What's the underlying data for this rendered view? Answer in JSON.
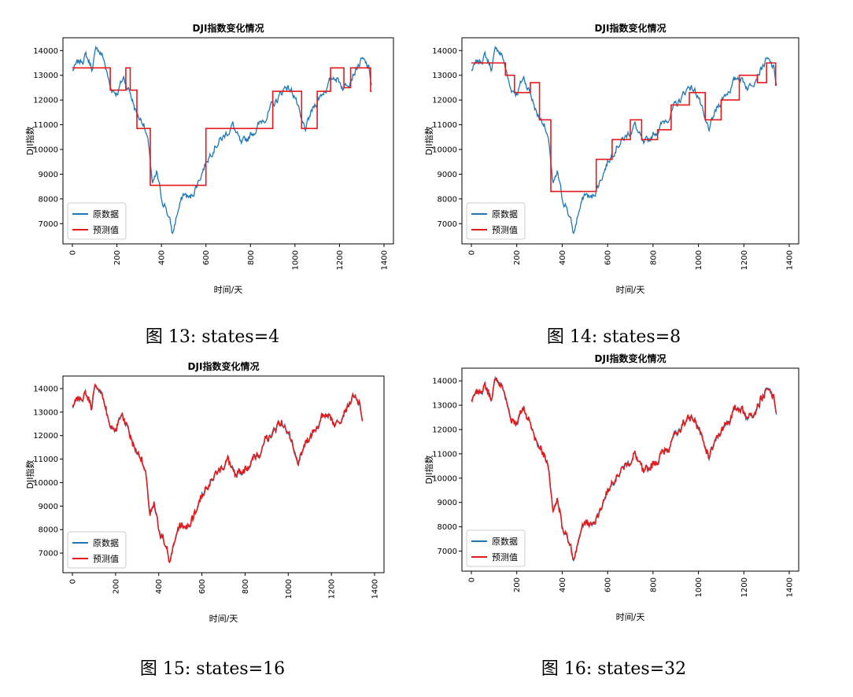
{
  "figures": [
    {
      "caption_prefix": "图",
      "caption_num": "13:",
      "caption_text": "states=4",
      "chart_data": {
        "type": "line",
        "title": "DJI指数变化情况",
        "xlabel": "时间/天",
        "ylabel": "DJI指数",
        "xlim": [
          0,
          1400
        ],
        "ylim": [
          6500,
          14200
        ],
        "xticks": [
          0,
          200,
          400,
          600,
          800,
          1000,
          1200,
          1400
        ],
        "yticks": [
          7000,
          8000,
          9000,
          10000,
          11000,
          12000,
          13000,
          14000
        ],
        "legend_position": "lower-left",
        "series": [
          {
            "name": "原数据",
            "color": "#1f77b4",
            "kind": "raw"
          },
          {
            "name": "预测值",
            "color": "#e31a1c",
            "kind": "steps",
            "steps": [
              [
                0,
                13300
              ],
              [
                170,
                12400
              ],
              [
                240,
                13300
              ],
              [
                260,
                12400
              ],
              [
                290,
                10850
              ],
              [
                350,
                8550
              ],
              [
                600,
                10850
              ],
              [
                900,
                12350
              ],
              [
                1030,
                10850
              ],
              [
                1100,
                12350
              ],
              [
                1160,
                13300
              ],
              [
                1220,
                12500
              ],
              [
                1250,
                13300
              ],
              [
                1340,
                12350
              ]
            ]
          }
        ]
      }
    },
    {
      "caption_prefix": "图",
      "caption_num": "14:",
      "caption_text": "states=8",
      "chart_data": {
        "type": "line",
        "title": "DJI指数变化情况",
        "xlabel": "时间/天",
        "ylabel": "DJI指数",
        "xlim": [
          0,
          1400
        ],
        "ylim": [
          6500,
          14200
        ],
        "xticks": [
          0,
          200,
          400,
          600,
          800,
          1000,
          1200,
          1400
        ],
        "yticks": [
          7000,
          8000,
          9000,
          10000,
          11000,
          12000,
          13000,
          14000
        ],
        "legend_position": "lower-left",
        "series": [
          {
            "name": "原数据",
            "color": "#1f77b4",
            "kind": "raw"
          },
          {
            "name": "预测值",
            "color": "#e31a1c",
            "kind": "steps",
            "steps": [
              [
                0,
                13500
              ],
              [
                150,
                13000
              ],
              [
                190,
                12300
              ],
              [
                260,
                12700
              ],
              [
                300,
                11200
              ],
              [
                350,
                8300
              ],
              [
                550,
                9600
              ],
              [
                620,
                10400
              ],
              [
                700,
                11200
              ],
              [
                750,
                10400
              ],
              [
                820,
                10800
              ],
              [
                880,
                11800
              ],
              [
                960,
                12300
              ],
              [
                1030,
                11200
              ],
              [
                1100,
                12000
              ],
              [
                1180,
                13000
              ],
              [
                1260,
                12700
              ],
              [
                1300,
                13500
              ],
              [
                1340,
                12600
              ]
            ]
          }
        ]
      }
    },
    {
      "caption_prefix": "图",
      "caption_num": "15:",
      "caption_text": "states=16",
      "chart_data": {
        "type": "line",
        "title": "DJI指数变化情况",
        "xlabel": "时间/天",
        "ylabel": "DJI指数",
        "xlim": [
          0,
          1400
        ],
        "ylim": [
          6500,
          14200
        ],
        "xticks": [
          0,
          200,
          400,
          600,
          800,
          1000,
          1200,
          1400
        ],
        "yticks": [
          7000,
          8000,
          9000,
          10000,
          11000,
          12000,
          13000,
          14000
        ],
        "legend_position": "lower-left",
        "series": [
          {
            "name": "原数据",
            "color": "#1f77b4",
            "kind": "raw"
          },
          {
            "name": "预测值",
            "color": "#e31a1c",
            "kind": "tracking"
          }
        ]
      }
    },
    {
      "caption_prefix": "图",
      "caption_num": "16:",
      "caption_text": "states=32",
      "chart_data": {
        "type": "line",
        "title": "DJI指数变化情况",
        "xlabel": "时间/天",
        "ylabel": "DJI指数",
        "xlim": [
          0,
          1400
        ],
        "ylim": [
          6500,
          14200
        ],
        "xticks": [
          0,
          200,
          400,
          600,
          800,
          1000,
          1200,
          1400
        ],
        "yticks": [
          7000,
          8000,
          9000,
          10000,
          11000,
          12000,
          13000,
          14000
        ],
        "legend_position": "lower-left",
        "series": [
          {
            "name": "原数据",
            "color": "#1f77b4",
            "kind": "raw"
          },
          {
            "name": "预测值",
            "color": "#e31a1c",
            "kind": "tracking"
          }
        ]
      }
    }
  ],
  "raw_anchors": [
    [
      0,
      13200
    ],
    [
      30,
      13500
    ],
    [
      60,
      13800
    ],
    [
      90,
      13300
    ],
    [
      110,
      14150
    ],
    [
      140,
      13700
    ],
    [
      170,
      12500
    ],
    [
      200,
      12300
    ],
    [
      230,
      12900
    ],
    [
      260,
      12300
    ],
    [
      290,
      11400
    ],
    [
      320,
      11100
    ],
    [
      345,
      10000
    ],
    [
      360,
      8500
    ],
    [
      380,
      9000
    ],
    [
      400,
      8000
    ],
    [
      420,
      7700
    ],
    [
      440,
      7000
    ],
    [
      450,
      6550
    ],
    [
      470,
      7400
    ],
    [
      500,
      8200
    ],
    [
      530,
      8000
    ],
    [
      560,
      8600
    ],
    [
      600,
      9500
    ],
    [
      640,
      10200
    ],
    [
      680,
      10500
    ],
    [
      720,
      11000
    ],
    [
      760,
      10100
    ],
    [
      800,
      10600
    ],
    [
      840,
      11000
    ],
    [
      880,
      11500
    ],
    [
      920,
      12000
    ],
    [
      960,
      12600
    ],
    [
      1000,
      12200
    ],
    [
      1030,
      11000
    ],
    [
      1050,
      10800
    ],
    [
      1070,
      11400
    ],
    [
      1100,
      12000
    ],
    [
      1140,
      12500
    ],
    [
      1180,
      13000
    ],
    [
      1220,
      12500
    ],
    [
      1260,
      13100
    ],
    [
      1300,
      13600
    ],
    [
      1330,
      13300
    ],
    [
      1345,
      12600
    ]
  ]
}
